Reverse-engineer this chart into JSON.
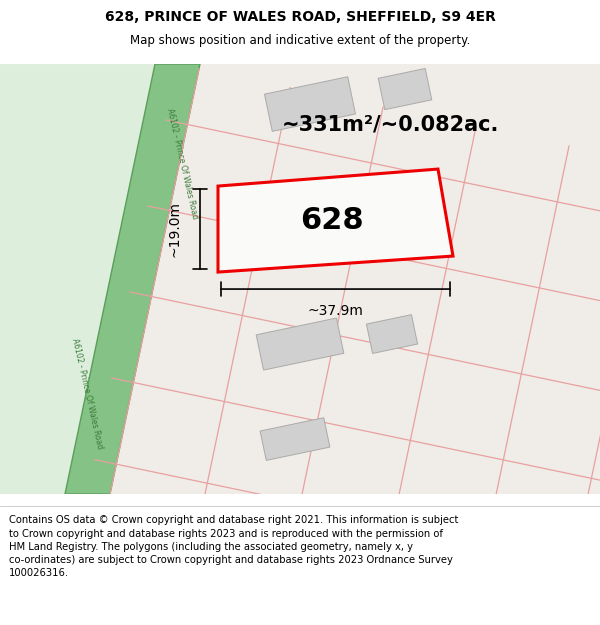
{
  "title_line1": "628, PRINCE OF WALES ROAD, SHEFFIELD, S9 4ER",
  "title_line2": "Map shows position and indicative extent of the property.",
  "footer_text": "Contains OS data © Crown copyright and database right 2021. This information is subject\nto Crown copyright and database rights 2023 and is reproduced with the permission of\nHM Land Registry. The polygons (including the associated geometry, namely x, y\nco-ordinates) are subject to Crown copyright and database rights 2023 Ordnance Survey\n100026316.",
  "area_label": "~331m²/~0.082ac.",
  "width_label": "~37.9m",
  "height_label": "~19.0m",
  "plot_number": "628",
  "road_green_color": "#85c285",
  "road_green_border": "#5a9e5a",
  "plot_line_color": "#e8a0a0",
  "highlight_color": "#ee0000",
  "building_fill": "#d0d0d0",
  "building_line": "#aaaaaa",
  "map_bg_right": "#f5f0eb",
  "map_bg_left": "#eaf0ea",
  "road_label_color": "#3a7a3a"
}
